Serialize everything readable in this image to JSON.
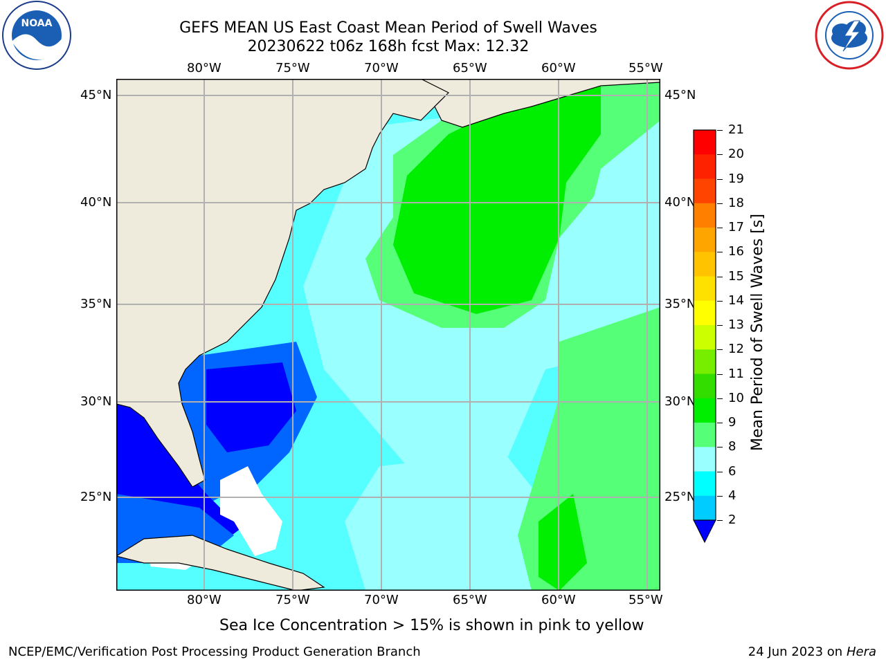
{
  "title_line1": "GEFS MEAN US East Coast Mean Period of Swell Waves",
  "title_line2": "20230622 t06z 168h fcst   Max: 12.32",
  "lon_labels": [
    "80°W",
    "75°W",
    "70°W",
    "65°W",
    "60°W",
    "55°W"
  ],
  "lat_labels": [
    "45°N",
    "40°N",
    "35°N",
    "30°N",
    "25°N"
  ],
  "colorbar": {
    "label": "Mean Period of Swell Waves [s]",
    "ticks": [
      "2",
      "4",
      "6",
      "8",
      "9",
      "10",
      "11",
      "12",
      "13",
      "14",
      "15",
      "16",
      "17",
      "18",
      "19",
      "20",
      "21"
    ],
    "colors": [
      "#0000ff",
      "#0066ff",
      "#00ccff",
      "#00ffff",
      "#99ffff",
      "#55ff77",
      "#00ee00",
      "#33dd00",
      "#77ee00",
      "#ccff00",
      "#ffff00",
      "#ffe100",
      "#ffc300",
      "#ffa500",
      "#ff7f00",
      "#ff4400",
      "#ff2200",
      "#ff0000"
    ]
  },
  "map_colors": {
    "land": "#efebdc",
    "ocean_base": "#55ffff",
    "ice_free_white": "#ffffff"
  },
  "footer": {
    "sea_ice_note": "Sea Ice Concentration > 15% is shown in pink to yellow",
    "org": "NCEP/EMC/Verification Post Processing Product Generation Branch",
    "date": "24 Jun 2023 on",
    "host": "Hera"
  },
  "logos": {
    "noaa": "NOAA",
    "nws": "NATIONAL WEATHER SERVICE"
  }
}
